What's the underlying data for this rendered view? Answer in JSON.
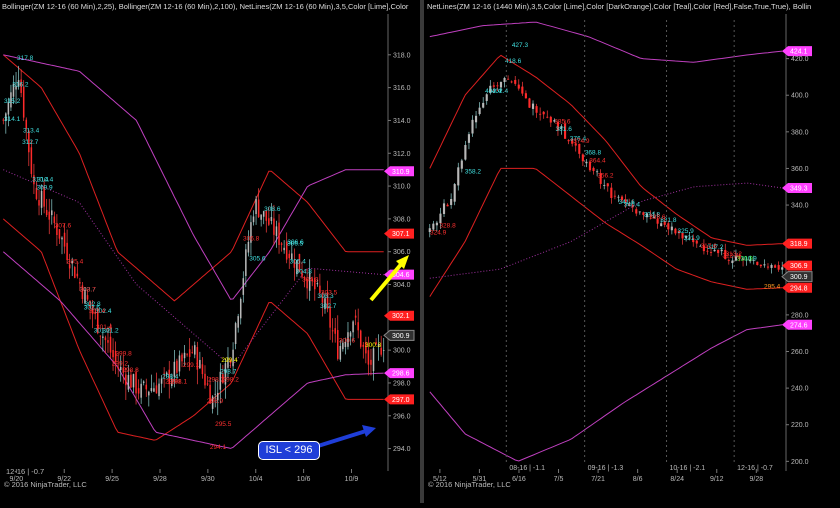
{
  "left": {
    "header": "Bollinger(ZM 12-16 (60 Min),2,25), Bollinger(ZM 12-16 (60 Min),2,100), NetLines(ZM 12-16 (60 Min),3,5,Color [Lime],Color",
    "copyright": "© 2016 NinjaTrader, LLC",
    "contract_label": "12-16 | -0.7",
    "callout_text": "ISL < 296",
    "chart_data": {
      "type": "candlestick",
      "ylim": [
        293,
        320
      ],
      "y_ticks": [
        294,
        296,
        298,
        300,
        302,
        304,
        306,
        308,
        310,
        312,
        314,
        316,
        318
      ],
      "x_ticks": [
        "9/20",
        "9/22",
        "9/25",
        "9/28",
        "9/30",
        "10/4",
        "10/6",
        "10/9"
      ],
      "price_markers": [
        {
          "value": "310.9",
          "color": "#ff40ff"
        },
        {
          "value": "307.1",
          "color": "#ff2020"
        },
        {
          "value": "304.6",
          "color": "#ff40ff"
        },
        {
          "value": "302.1",
          "color": "#ff2020"
        },
        {
          "value": "300.9",
          "color": "#303030"
        },
        {
          "value": "298.6",
          "color": "#ff40ff"
        },
        {
          "value": "297.0",
          "color": "#ff2020"
        }
      ],
      "annotations_red": [
        "298.8",
        "299.8",
        "298.1",
        "296.9",
        "294.1",
        "295.5",
        "298.2",
        "299.2",
        "300.6",
        "302.4",
        "307.6",
        "306.8",
        "305.4",
        "304.3",
        "303.7",
        "299.1",
        "298.1",
        "298.2",
        "301.4",
        "303.5"
      ],
      "annotations_cyan": [
        "317.8",
        "316.2",
        "315.2",
        "314.1",
        "313.4",
        "312.7",
        "310.4",
        "306.6",
        "305.6",
        "304.8",
        "303.7",
        "302.7",
        "301.2",
        "298.7",
        "298.4",
        "302.8",
        "302.4",
        "310.4",
        "309.9",
        "308.6",
        "306.5",
        "305.4",
        "303.3",
        "302.6",
        "301.2"
      ],
      "annotations_yellow": [
        "300.3",
        "299.4"
      ]
    }
  },
  "right": {
    "header": "NetLines(ZM 12-16 (1440 Min),3,5,Color [Lime],Color [DarkOrange],Color [Teal],Color [Red],False,True,True), Bollin",
    "copyright": "© 2016 NinjaTrader, LLC",
    "contract_labels": [
      "08-16 | -1.1",
      "09-16 | -1.3",
      "10-16 | -2.1",
      "12-16 | -0.7"
    ],
    "chart_data": {
      "type": "candlestick",
      "ylim": [
        198,
        440
      ],
      "y_ticks": [
        200,
        220,
        240,
        260,
        280,
        300,
        320,
        340,
        360,
        380,
        400,
        420
      ],
      "x_ticks": [
        "5/12",
        "5/31",
        "6/16",
        "7/5",
        "7/21",
        "8/6",
        "8/24",
        "9/12",
        "9/28"
      ],
      "price_markers": [
        {
          "value": "424.1",
          "color": "#ff40ff"
        },
        {
          "value": "349.3",
          "color": "#ff40ff"
        },
        {
          "value": "318.9",
          "color": "#ff2020"
        },
        {
          "value": "306.9",
          "color": "#ff2020"
        },
        {
          "value": "300.9",
          "color": "#303030"
        },
        {
          "value": "294.8",
          "color": "#ff2020"
        },
        {
          "value": "274.6",
          "color": "#ff40ff"
        }
      ],
      "annotations_cyan": [
        "427.3",
        "418.6",
        "402.4",
        "402.4",
        "381.6",
        "376.4",
        "368.8",
        "358.2",
        "341.6",
        "340.4",
        "334.8",
        "331.8",
        "325.9",
        "321.9",
        "317.2",
        "310.9"
      ],
      "annotations_red": [
        "385.6",
        "374.9",
        "364.4",
        "356.2",
        "333.6",
        "328.8",
        "324.9",
        "317.6",
        "313.2",
        "312.4"
      ],
      "annotations_orange": [
        "295.4"
      ],
      "annotations_lime": [
        "310.9"
      ]
    }
  }
}
